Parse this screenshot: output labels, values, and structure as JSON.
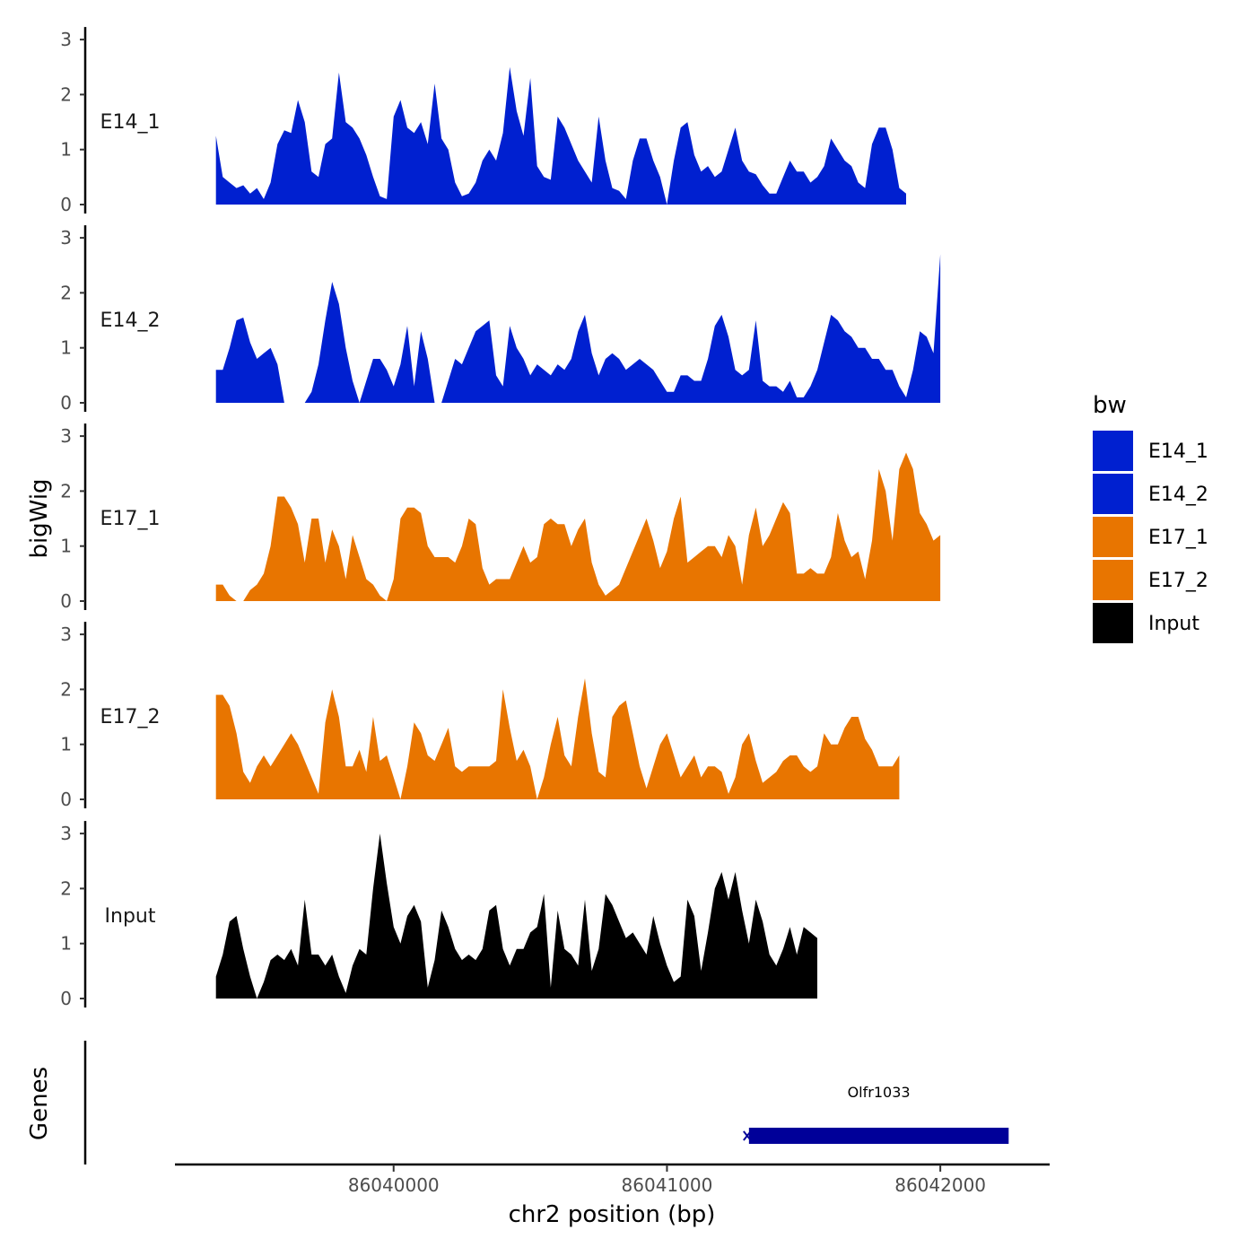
{
  "chart_data": {
    "type": "area",
    "ylabel": "bigWig",
    "xlabel": "chr2 position (bp)",
    "genes_label": "Genes",
    "xlim": [
      86039200,
      86042400
    ],
    "ylim": [
      0,
      3
    ],
    "y_ticks": [
      "0",
      "1",
      "2",
      "3"
    ],
    "x_ticks": [
      {
        "value": 86040000,
        "label": "86040000"
      },
      {
        "value": 86041000,
        "label": "86041000"
      },
      {
        "value": 86042000,
        "label": "86042000"
      }
    ],
    "legend": {
      "title": "bw",
      "items": [
        {
          "label": "E14_1",
          "color": "#0020d0"
        },
        {
          "label": "E14_2",
          "color": "#0020d0"
        },
        {
          "label": "E17_1",
          "color": "#e87500"
        },
        {
          "label": "E17_2",
          "color": "#e87500"
        },
        {
          "label": "Input",
          "color": "#000000"
        }
      ]
    },
    "x_start": 86039350,
    "x_step": 25,
    "series": [
      {
        "name": "E14_1",
        "color": "#0020d0",
        "values": [
          1.25,
          0.5,
          0.4,
          0.3,
          0.35,
          0.2,
          0.3,
          0.1,
          0.4,
          1.1,
          1.35,
          1.3,
          1.9,
          1.5,
          0.6,
          0.5,
          1.1,
          1.2,
          2.4,
          1.5,
          1.4,
          1.2,
          0.9,
          0.5,
          0.15,
          0.1,
          1.6,
          1.9,
          1.4,
          1.3,
          1.5,
          1.1,
          2.2,
          1.2,
          1.0,
          0.4,
          0.15,
          0.2,
          0.4,
          0.8,
          1.0,
          0.8,
          1.3,
          2.5,
          1.7,
          1.25,
          2.3,
          0.7,
          0.5,
          0.45,
          1.6,
          1.4,
          1.1,
          0.8,
          0.6,
          0.4,
          1.6,
          0.8,
          0.3,
          0.25,
          0.1,
          0.8,
          1.2,
          1.2,
          0.8,
          0.5,
          0.0,
          0.8,
          1.4,
          1.5,
          0.9,
          0.6,
          0.7,
          0.5,
          0.6,
          1.0,
          1.4,
          0.8,
          0.6,
          0.55,
          0.35,
          0.2,
          0.2,
          0.5,
          0.8,
          0.6,
          0.6,
          0.4,
          0.5,
          0.7,
          1.2,
          1.0,
          0.8,
          0.7,
          0.4,
          0.3,
          1.1,
          1.4,
          1.4,
          1.0,
          0.3,
          0.2
        ]
      },
      {
        "name": "E14_2",
        "color": "#0020d0",
        "values": [
          0.6,
          0.6,
          1.0,
          1.5,
          1.55,
          1.1,
          0.8,
          0.9,
          1.0,
          0.7,
          0.0,
          0.0,
          0.0,
          0.0,
          0.2,
          0.7,
          1.5,
          2.2,
          1.8,
          1.0,
          0.4,
          0.0,
          0.4,
          0.8,
          0.8,
          0.6,
          0.3,
          0.7,
          1.4,
          0.3,
          1.3,
          0.8,
          0.0,
          0.0,
          0.4,
          0.8,
          0.7,
          1.0,
          1.3,
          1.4,
          1.5,
          0.5,
          0.3,
          1.4,
          1.0,
          0.8,
          0.5,
          0.7,
          0.6,
          0.5,
          0.7,
          0.6,
          0.8,
          1.3,
          1.6,
          0.9,
          0.5,
          0.8,
          0.9,
          0.8,
          0.6,
          0.7,
          0.8,
          0.7,
          0.6,
          0.4,
          0.2,
          0.2,
          0.5,
          0.5,
          0.4,
          0.4,
          0.8,
          1.4,
          1.6,
          1.2,
          0.6,
          0.5,
          0.6,
          1.5,
          0.4,
          0.3,
          0.3,
          0.2,
          0.4,
          0.1,
          0.1,
          0.3,
          0.6,
          1.1,
          1.6,
          1.5,
          1.3,
          1.2,
          1.0,
          1.0,
          0.8,
          0.8,
          0.6,
          0.6,
          0.3,
          0.1,
          0.6,
          1.3,
          1.2,
          0.9,
          2.7
        ]
      },
      {
        "name": "E17_1",
        "color": "#e87500",
        "values": [
          0.3,
          0.3,
          0.1,
          0.0,
          0.0,
          0.2,
          0.3,
          0.5,
          1.0,
          1.9,
          1.9,
          1.7,
          1.4,
          0.7,
          1.5,
          1.5,
          0.7,
          1.3,
          1.0,
          0.4,
          1.2,
          0.8,
          0.4,
          0.3,
          0.1,
          0.0,
          0.4,
          1.5,
          1.7,
          1.7,
          1.6,
          1.0,
          0.8,
          0.8,
          0.8,
          0.7,
          1.0,
          1.5,
          1.4,
          0.6,
          0.3,
          0.4,
          0.4,
          0.4,
          0.7,
          1.0,
          0.7,
          0.8,
          1.4,
          1.5,
          1.4,
          1.4,
          1.0,
          1.3,
          1.5,
          0.7,
          0.3,
          0.1,
          0.2,
          0.3,
          0.6,
          0.9,
          1.2,
          1.5,
          1.1,
          0.6,
          0.9,
          1.5,
          1.9,
          0.7,
          0.8,
          0.9,
          1.0,
          1.0,
          0.8,
          1.2,
          1.0,
          0.3,
          1.2,
          1.7,
          1.0,
          1.2,
          1.5,
          1.8,
          1.6,
          0.5,
          0.5,
          0.6,
          0.5,
          0.5,
          0.8,
          1.6,
          1.1,
          0.8,
          0.9,
          0.4,
          1.1,
          2.4,
          2.0,
          1.1,
          2.4,
          2.7,
          2.4,
          1.6,
          1.4,
          1.1,
          1.2
        ]
      },
      {
        "name": "E17_2",
        "color": "#e87500",
        "values": [
          1.9,
          1.9,
          1.7,
          1.2,
          0.5,
          0.3,
          0.6,
          0.8,
          0.6,
          0.8,
          1.0,
          1.2,
          1.0,
          0.7,
          0.4,
          0.1,
          1.4,
          2.0,
          1.5,
          0.6,
          0.6,
          0.9,
          0.5,
          1.5,
          0.7,
          0.8,
          0.4,
          0.0,
          0.6,
          1.4,
          1.2,
          0.8,
          0.7,
          1.0,
          1.3,
          0.6,
          0.5,
          0.6,
          0.6,
          0.6,
          0.6,
          0.7,
          2.0,
          1.3,
          0.7,
          0.9,
          0.6,
          0.0,
          0.4,
          1.0,
          1.5,
          0.8,
          0.6,
          1.5,
          2.2,
          1.2,
          0.5,
          0.4,
          1.5,
          1.7,
          1.8,
          1.2,
          0.6,
          0.2,
          0.6,
          1.0,
          1.2,
          0.8,
          0.4,
          0.6,
          0.8,
          0.4,
          0.6,
          0.6,
          0.5,
          0.1,
          0.4,
          1.0,
          1.2,
          0.7,
          0.3,
          0.4,
          0.5,
          0.7,
          0.8,
          0.8,
          0.6,
          0.5,
          0.6,
          1.2,
          1.0,
          1.0,
          1.3,
          1.5,
          1.5,
          1.1,
          0.9,
          0.6,
          0.6,
          0.6,
          0.8
        ]
      },
      {
        "name": "Input",
        "color": "#000000",
        "values": [
          0.4,
          0.8,
          1.4,
          1.5,
          0.9,
          0.4,
          0.0,
          0.3,
          0.7,
          0.8,
          0.7,
          0.9,
          0.6,
          1.8,
          0.8,
          0.8,
          0.6,
          0.8,
          0.4,
          0.1,
          0.6,
          0.9,
          0.8,
          2.0,
          3.0,
          2.1,
          1.3,
          1.0,
          1.5,
          1.7,
          1.4,
          0.2,
          0.7,
          1.6,
          1.3,
          0.9,
          0.7,
          0.8,
          0.7,
          0.9,
          1.6,
          1.7,
          0.9,
          0.6,
          0.9,
          0.9,
          1.2,
          1.3,
          1.9,
          0.2,
          1.6,
          0.9,
          0.8,
          0.6,
          1.8,
          0.5,
          0.9,
          1.9,
          1.7,
          1.4,
          1.1,
          1.2,
          1.0,
          0.8,
          1.5,
          1.0,
          0.6,
          0.3,
          0.4,
          1.8,
          1.5,
          0.5,
          1.2,
          2.0,
          2.3,
          1.8,
          2.3,
          1.6,
          1.0,
          1.8,
          1.4,
          0.8,
          0.6,
          0.9,
          1.3,
          0.8,
          1.3,
          1.2,
          1.1
        ]
      }
    ],
    "genes": [
      {
        "name": "Olfr1033",
        "start": 86041300,
        "end": 86042250,
        "color": "#000099",
        "strand": "-"
      }
    ]
  }
}
